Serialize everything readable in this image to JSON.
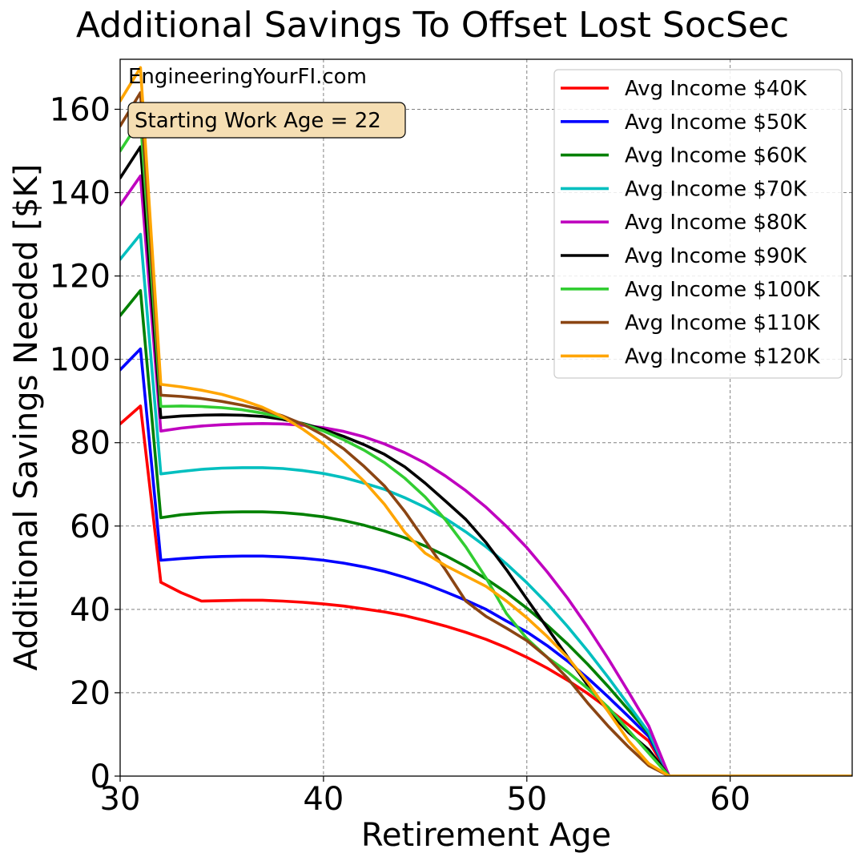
{
  "chart_data": {
    "type": "line",
    "title": "Additional Savings To Offset Lost SocSec",
    "xlabel": "Retirement Age",
    "ylabel": "Additional Savings Needed [$K]",
    "watermark": "EngineeringYourFI.com",
    "annotation": "Starting Work Age = 22",
    "xlim": [
      30,
      66
    ],
    "ylim": [
      0,
      172
    ],
    "xticks": [
      30,
      40,
      50,
      60
    ],
    "yticks": [
      0,
      20,
      40,
      60,
      80,
      100,
      120,
      140,
      160
    ],
    "grid": true,
    "legend_position": "top-right",
    "x": [
      30,
      31,
      32,
      33,
      34,
      35,
      36,
      37,
      38,
      39,
      40,
      41,
      42,
      43,
      44,
      45,
      46,
      47,
      48,
      49,
      50,
      51,
      52,
      53,
      54,
      55,
      56,
      57,
      58,
      59,
      60,
      61,
      62,
      63,
      64,
      65,
      66
    ],
    "series": [
      {
        "name": "Avg Income $40K",
        "color": "#ff0000",
        "values": [
          84.5,
          88.8,
          46.5,
          44,
          42,
          42.1,
          42.2,
          42.2,
          42,
          41.7,
          41.3,
          40.8,
          40.1,
          39.4,
          38.5,
          37.3,
          36,
          34.5,
          32.8,
          30.8,
          28.5,
          25.9,
          23,
          19.8,
          16.2,
          12.3,
          8.4,
          0,
          0,
          0,
          0,
          0,
          0,
          0,
          0,
          0,
          0
        ]
      },
      {
        "name": "Avg Income $50K",
        "color": "#0000ff",
        "values": [
          97.5,
          102.5,
          51.8,
          52.2,
          52.5,
          52.7,
          52.8,
          52.8,
          52.6,
          52.3,
          51.8,
          51.1,
          50.2,
          49.1,
          47.7,
          46.1,
          44.2,
          42.2,
          40,
          37.2,
          34.6,
          31.3,
          27.6,
          23.5,
          19,
          14.3,
          9.5,
          0,
          0,
          0,
          0,
          0,
          0,
          0,
          0,
          0,
          0
        ]
      },
      {
        "name": "Avg Income $60K",
        "color": "#008000",
        "values": [
          110.5,
          116.5,
          62,
          62.7,
          63.1,
          63.3,
          63.4,
          63.4,
          63.2,
          62.8,
          62.2,
          61.3,
          60.2,
          58.8,
          57.2,
          55.2,
          52.9,
          50.3,
          47.3,
          44,
          40.3,
          36.2,
          31.7,
          26.8,
          21.5,
          15.9,
          10.2,
          0,
          0,
          0,
          0,
          0,
          0,
          0,
          0,
          0,
          0
        ]
      },
      {
        "name": "Avg Income $70K",
        "color": "#00bfbf",
        "values": [
          124,
          130,
          72.5,
          73.1,
          73.6,
          73.9,
          74,
          74,
          73.8,
          73.3,
          72.6,
          71.6,
          70.3,
          68.8,
          66.8,
          64.5,
          61.8,
          58.6,
          55,
          50.9,
          46.4,
          41.4,
          35.9,
          30,
          23.7,
          17.1,
          10.5,
          0,
          0,
          0,
          0,
          0,
          0,
          0,
          0,
          0,
          0
        ]
      },
      {
        "name": "Avg Income $80K",
        "color": "#bf00bf",
        "values": [
          137,
          144,
          82.8,
          83.5,
          84,
          84.3,
          84.5,
          84.6,
          84.5,
          84.2,
          83.6,
          82.7,
          81.4,
          79.7,
          77.6,
          75.1,
          72,
          68.5,
          64.5,
          59.9,
          54.8,
          49,
          42.7,
          35.7,
          28.2,
          20.2,
          12,
          0,
          0,
          0,
          0,
          0,
          0,
          0,
          0,
          0,
          0
        ]
      },
      {
        "name": "Avg Income $90K",
        "color": "#000000",
        "values": [
          143.5,
          151,
          86,
          86.4,
          86.6,
          86.7,
          86.6,
          86.3,
          85.6,
          84.6,
          83.2,
          81.5,
          79.5,
          77.2,
          74.2,
          70.3,
          66,
          61.6,
          56,
          49.5,
          42.5,
          35.6,
          28.6,
          21.8,
          15.6,
          10.5,
          6.3,
          0,
          0,
          0,
          0,
          0,
          0,
          0,
          0,
          0,
          0
        ]
      },
      {
        "name": "Avg Income $100K",
        "color": "#32cd32",
        "values": [
          150,
          157.5,
          88.7,
          88.8,
          88.7,
          88.4,
          87.9,
          87.1,
          86,
          84.5,
          82.8,
          80.7,
          78.2,
          75.2,
          71.5,
          67,
          61.5,
          55,
          47.5,
          39,
          33,
          28.5,
          25,
          21,
          16.5,
          11,
          5.5,
          0,
          0,
          0,
          0,
          0,
          0,
          0,
          0,
          0,
          0
        ]
      },
      {
        "name": "Avg Income $110K",
        "color": "#8b4513",
        "values": [
          156,
          164,
          91.4,
          91.1,
          90.6,
          89.9,
          89,
          87.9,
          86.4,
          84.4,
          81.8,
          78.5,
          74.3,
          69.6,
          63.5,
          56.5,
          49.5,
          42,
          38.3,
          35.5,
          32.5,
          28.5,
          23.5,
          17.5,
          12,
          7,
          2.5,
          0,
          0,
          0,
          0,
          0,
          0,
          0,
          0,
          0,
          0
        ]
      },
      {
        "name": "Avg Income $120K",
        "color": "#ffa500",
        "values": [
          162,
          170,
          94,
          93.4,
          92.6,
          91.6,
          90.2,
          88.5,
          86.2,
          83.2,
          79.7,
          75.4,
          70.7,
          65.2,
          58.5,
          53.5,
          50.5,
          48,
          45.5,
          42,
          38,
          33.5,
          28.5,
          22.5,
          15.5,
          8.5,
          3,
          0,
          0,
          0,
          0,
          0,
          0,
          0,
          0,
          0,
          0
        ]
      }
    ]
  }
}
